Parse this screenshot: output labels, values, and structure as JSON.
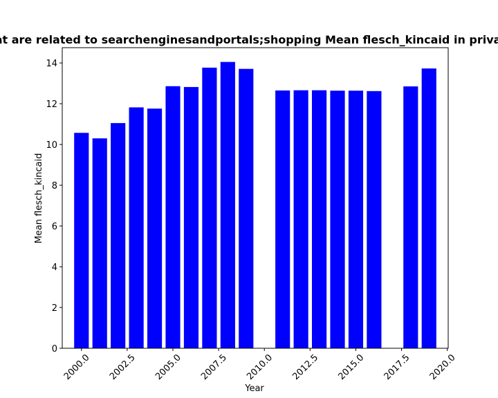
{
  "chart_data": {
    "type": "bar",
    "title": "Ratio of Websites that are related to searchenginesandportals;shopping Mean flesch_kincaid in privacy policies over time",
    "xlabel": "Year",
    "ylabel": "Mean flesch_kincaid",
    "x": [
      2000,
      2001,
      2002,
      2003,
      2004,
      2005,
      2006,
      2007,
      2008,
      2009,
      2011,
      2012,
      2013,
      2014,
      2015,
      2016,
      2018,
      2019
    ],
    "values": [
      10.57,
      10.3,
      11.05,
      11.82,
      11.76,
      12.86,
      12.82,
      13.77,
      14.05,
      13.71,
      12.65,
      12.66,
      12.66,
      12.64,
      12.64,
      12.62,
      12.85,
      13.73
    ],
    "xlim": [
      1998.95,
      2020.05
    ],
    "ylim": [
      0,
      14.75
    ],
    "xticks": [
      "2000.0",
      "2002.5",
      "2005.0",
      "2007.5",
      "2010.0",
      "2012.5",
      "2015.0",
      "2017.5",
      "2020.0"
    ],
    "yticks": [
      "0",
      "2",
      "4",
      "6",
      "8",
      "10",
      "12",
      "14"
    ],
    "bar_color": "#0000ff",
    "grid": false,
    "legend": "none"
  }
}
